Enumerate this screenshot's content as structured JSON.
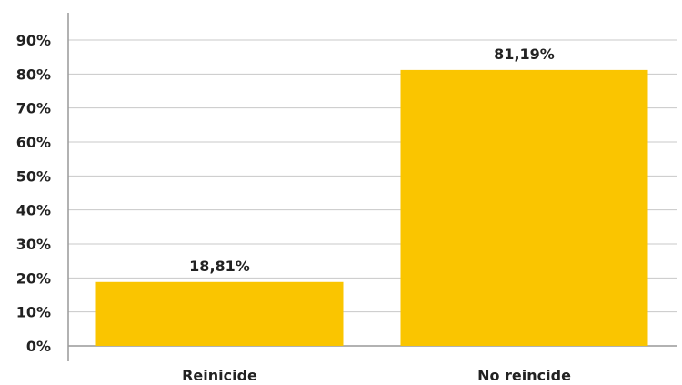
{
  "chart_data": {
    "type": "bar",
    "categories": [
      "Reinicide",
      "No reincide"
    ],
    "values": [
      18.81,
      81.19
    ],
    "data_labels": [
      "18,81%",
      "81,19%"
    ],
    "y_ticks": [
      "0%",
      "10%",
      "20%",
      "30%",
      "40%",
      "50%",
      "60%",
      "70%",
      "80%",
      "90%"
    ],
    "ylim": [
      0,
      90
    ],
    "grid": true,
    "legend": "none",
    "title": "",
    "xlabel": "",
    "ylabel": "",
    "colors": {
      "bar": "#FAC500",
      "grid": "#c8c8c8",
      "axis": "#999999"
    }
  }
}
